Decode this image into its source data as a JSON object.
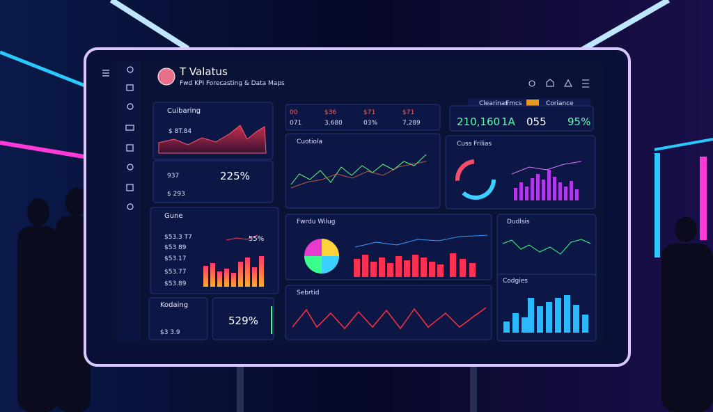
{
  "header": {
    "title": "T Valatus",
    "subtitle": "Fwd KPI Forecasting & Data Maps"
  },
  "toolbar": [
    "Clearinas",
    "Fmcs",
    "Coriance"
  ],
  "kpis_left": {
    "labels": [
      "00",
      "$36",
      "$71",
      "$71"
    ],
    "values": [
      "071",
      "3,680",
      "03%",
      "7,289"
    ]
  },
  "kpis_right": {
    "values": [
      "210,160",
      "1A",
      "055",
      "95%"
    ]
  },
  "panels": {
    "cuibaring": {
      "title": "Cuibaring",
      "value": "$ 8T.84",
      "sub": [
        "937",
        "$ 293"
      ],
      "big": "225%"
    },
    "gune": {
      "title": "Gune",
      "rows": [
        "$53.3 T7",
        "$53 89",
        "$53.17",
        "$53.77",
        "$53.89"
      ],
      "big": "55%"
    },
    "kodaing": {
      "title": "Kodaing",
      "value": "$3 3.9"
    },
    "gauge": {
      "big": "529%"
    },
    "cuotiola": {
      "title": "Cuotiola"
    },
    "cuss": {
      "title": "Cuss Frilias"
    },
    "fwrdu": {
      "title": "Fwrdu Wilug"
    },
    "dudlsis": {
      "title": "Dudlsis"
    },
    "codgies": {
      "title": "Codgies"
    },
    "sebrtid": {
      "title": "Sebrtid"
    }
  }
}
